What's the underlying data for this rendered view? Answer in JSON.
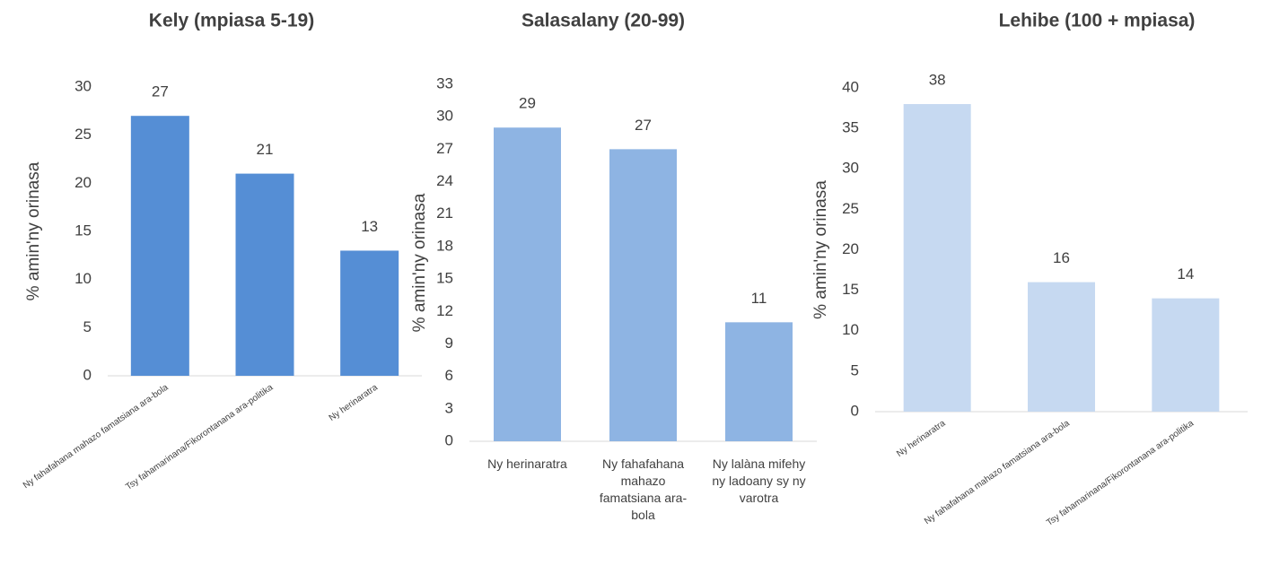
{
  "chart_data": [
    {
      "type": "bar",
      "title": "Kely (mpiasa 5-19)",
      "y_label": "% amin'ny orinasa",
      "color": "#558ed5",
      "categories": [
        "Ny fahafahana mahazo famatsiana ara-bola",
        "Tsy fahamarinana/Fikorontanana ara-politika",
        "Ny herinaratra"
      ],
      "values": [
        27,
        21,
        13
      ],
      "ylim": [
        0,
        30
      ],
      "yticks": [
        0,
        5,
        10,
        15,
        20,
        25,
        30
      ],
      "grid": false,
      "label_style": "rotated"
    },
    {
      "type": "bar",
      "title": "Salasalany (20-99)",
      "y_label": "% amin'ny orinasa",
      "color": "#8eb4e3",
      "categories": [
        "Ny herinaratra",
        "Ny fahafahana mahazo famatsiana ara-bola",
        "Ny lalàna mifehy ny ladoany sy ny varotra"
      ],
      "values": [
        29,
        27,
        11
      ],
      "ylim": [
        0,
        33
      ],
      "yticks": [
        0,
        3,
        6,
        9,
        12,
        15,
        18,
        21,
        24,
        27,
        30,
        33
      ],
      "grid": false,
      "label_style": "wrapped"
    },
    {
      "type": "bar",
      "title": "Lehibe (100 + mpiasa)",
      "y_label": "% amin'ny orinasa",
      "color": "#c6d9f1",
      "categories": [
        "Ny herinaratra",
        "Ny fahafahana mahazo famatsiana ara-bola",
        "Tsy fahamarinana/Fikorontanana ara-politika"
      ],
      "values": [
        38,
        16,
        14
      ],
      "ylim": [
        0,
        40
      ],
      "yticks": [
        0,
        5,
        10,
        15,
        20,
        25,
        30,
        35,
        40
      ],
      "grid": false,
      "label_style": "rotated"
    }
  ]
}
